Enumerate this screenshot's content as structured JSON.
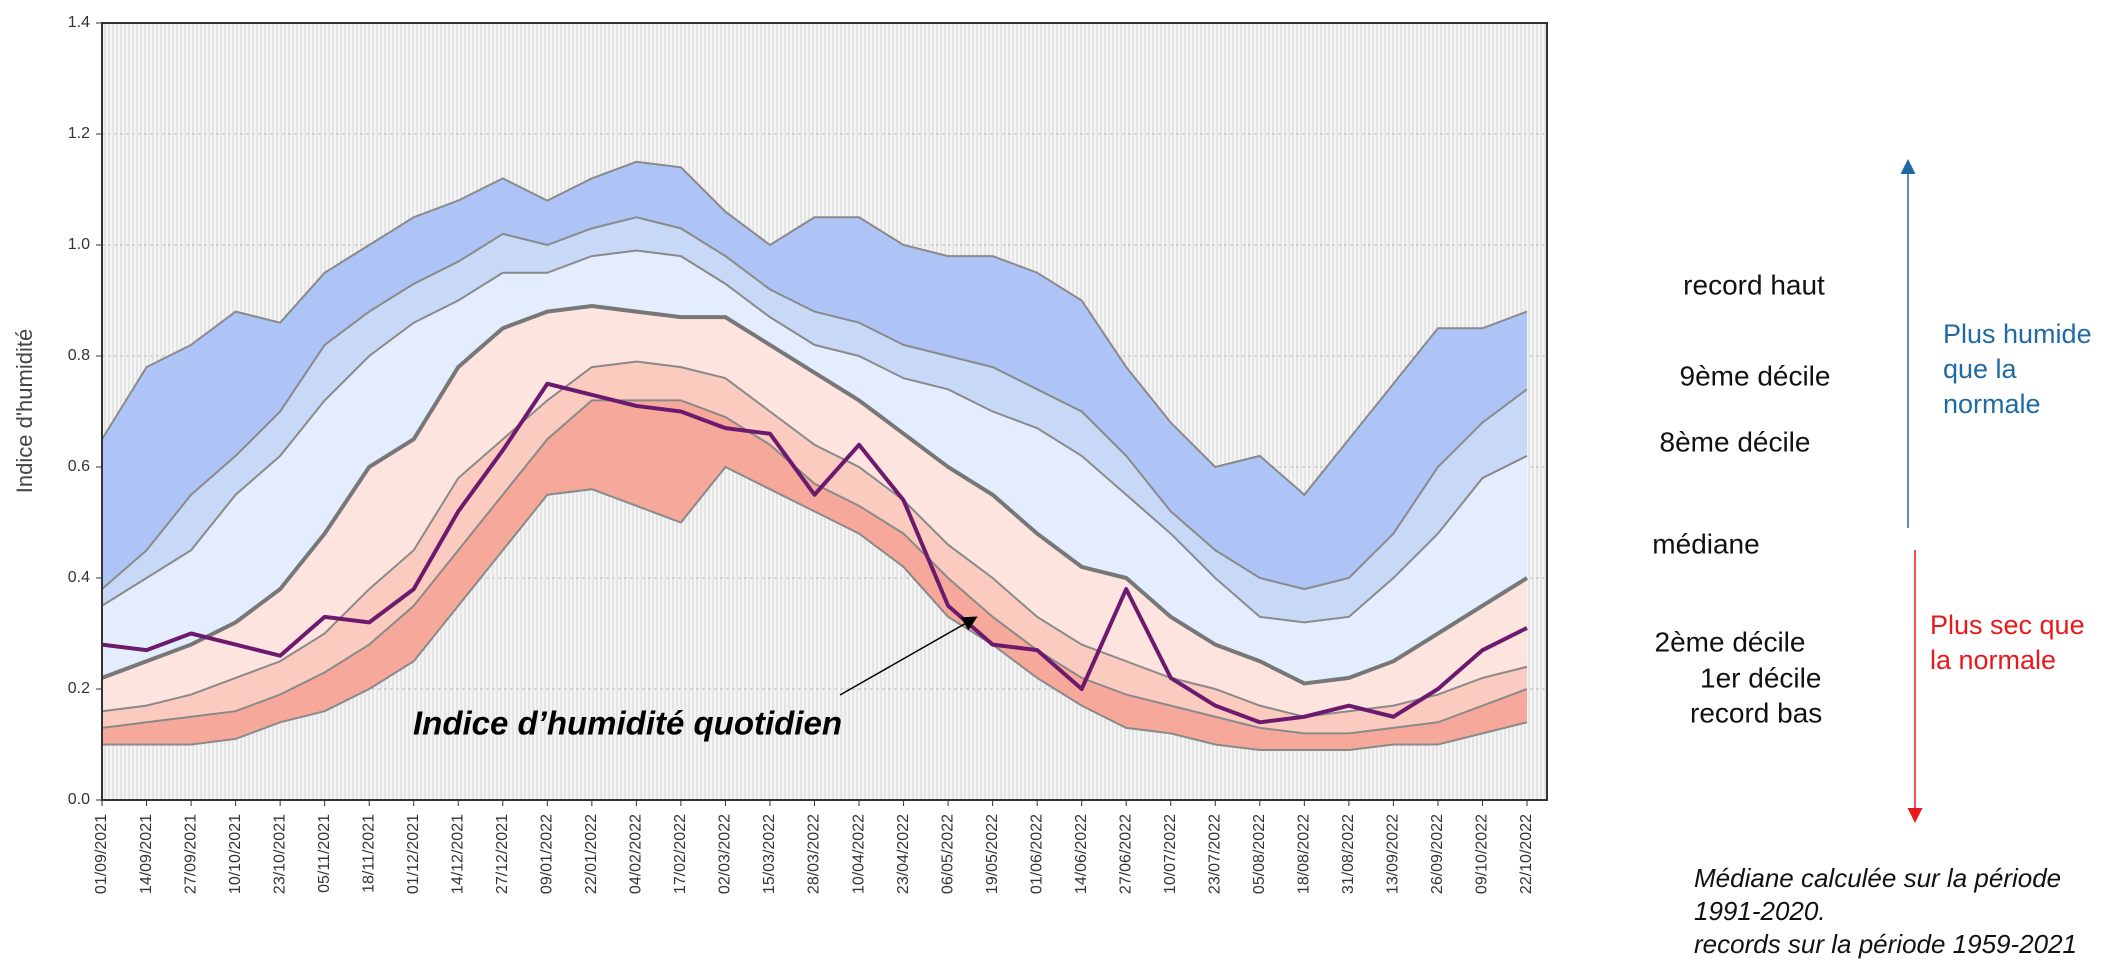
{
  "chart_data": {
    "type": "band",
    "y_label": "Indice d'humidité",
    "categories": [
      "01/09/2021",
      "14/09/2021",
      "27/09/2021",
      "10/10/2021",
      "23/10/2021",
      "05/11/2021",
      "18/11/2021",
      "01/12/2021",
      "14/12/2021",
      "27/12/2021",
      "09/01/2022",
      "22/01/2022",
      "04/02/2022",
      "17/02/2022",
      "02/03/2022",
      "15/03/2022",
      "28/03/2022",
      "10/04/2022",
      "23/04/2022",
      "06/05/2022",
      "19/05/2022",
      "01/06/2022",
      "14/06/2022",
      "27/06/2022",
      "10/07/2022",
      "23/07/2022",
      "05/08/2022",
      "18/08/2022",
      "31/08/2022",
      "13/09/2022",
      "26/09/2022",
      "09/10/2022",
      "22/10/2022"
    ],
    "ylim": [
      0,
      1.4
    ],
    "yticks": [
      {
        "value": 0,
        "label": "0.0"
      },
      {
        "value": 0.2,
        "label": "0.2"
      },
      {
        "value": 0.4,
        "label": "0.4"
      },
      {
        "value": 0.6,
        "label": "0.6"
      },
      {
        "value": 0.8,
        "label": "0.8"
      },
      {
        "value": 1,
        "label": "1.0"
      },
      {
        "value": 1.2,
        "label": "1.2"
      },
      {
        "value": 1.4,
        "label": "1.4"
      }
    ],
    "grid": true,
    "series": [
      {
        "name": "record haut",
        "color": "#aec4f6",
        "values": [
          0.65,
          0.78,
          0.82,
          0.88,
          0.86,
          0.95,
          1.0,
          1.05,
          1.08,
          1.12,
          1.08,
          1.12,
          1.15,
          1.14,
          1.06,
          1.0,
          1.05,
          1.05,
          1.0,
          0.98,
          0.98,
          0.95,
          0.9,
          0.78,
          0.68,
          0.6,
          0.62,
          0.55,
          0.65,
          0.75,
          0.85,
          0.85,
          0.88
        ]
      },
      {
        "name": "9ème décile",
        "color": "#c8d9f8",
        "values": [
          0.38,
          0.45,
          0.55,
          0.62,
          0.7,
          0.82,
          0.88,
          0.93,
          0.97,
          1.02,
          1.0,
          1.03,
          1.05,
          1.03,
          0.98,
          0.92,
          0.88,
          0.86,
          0.82,
          0.8,
          0.78,
          0.74,
          0.7,
          0.62,
          0.52,
          0.45,
          0.4,
          0.38,
          0.4,
          0.48,
          0.6,
          0.68,
          0.74
        ]
      },
      {
        "name": "8ème décile",
        "color": "#e4edfd",
        "values": [
          0.35,
          0.4,
          0.45,
          0.55,
          0.62,
          0.72,
          0.8,
          0.86,
          0.9,
          0.95,
          0.95,
          0.98,
          0.99,
          0.98,
          0.93,
          0.87,
          0.82,
          0.8,
          0.76,
          0.74,
          0.7,
          0.67,
          0.62,
          0.55,
          0.48,
          0.4,
          0.33,
          0.32,
          0.33,
          0.4,
          0.48,
          0.58,
          0.62
        ]
      },
      {
        "name": "médiane",
        "color": "#fde4de",
        "values": [
          0.22,
          0.25,
          0.28,
          0.32,
          0.38,
          0.48,
          0.6,
          0.65,
          0.78,
          0.85,
          0.88,
          0.89,
          0.88,
          0.87,
          0.87,
          0.82,
          0.77,
          0.72,
          0.66,
          0.6,
          0.55,
          0.48,
          0.42,
          0.4,
          0.33,
          0.28,
          0.25,
          0.21,
          0.22,
          0.25,
          0.3,
          0.35,
          0.4
        ]
      },
      {
        "name": "2ème décile",
        "color": "#fbcbbf",
        "values": [
          0.16,
          0.17,
          0.19,
          0.22,
          0.25,
          0.3,
          0.38,
          0.45,
          0.58,
          0.65,
          0.72,
          0.78,
          0.79,
          0.78,
          0.76,
          0.7,
          0.64,
          0.6,
          0.54,
          0.46,
          0.4,
          0.33,
          0.28,
          0.25,
          0.22,
          0.2,
          0.17,
          0.15,
          0.16,
          0.17,
          0.19,
          0.22,
          0.24
        ]
      },
      {
        "name": "1er décile",
        "color": "#f6a99b",
        "values": [
          0.13,
          0.14,
          0.15,
          0.16,
          0.19,
          0.23,
          0.28,
          0.35,
          0.45,
          0.55,
          0.65,
          0.72,
          0.72,
          0.72,
          0.69,
          0.64,
          0.57,
          0.53,
          0.48,
          0.4,
          0.33,
          0.27,
          0.22,
          0.19,
          0.17,
          0.15,
          0.13,
          0.12,
          0.12,
          0.13,
          0.14,
          0.17,
          0.2
        ]
      },
      {
        "name": "record bas",
        "color": "#f6a99b",
        "values": [
          0.1,
          0.1,
          0.1,
          0.11,
          0.14,
          0.16,
          0.2,
          0.25,
          0.35,
          0.45,
          0.55,
          0.56,
          0.53,
          0.5,
          0.6,
          0.56,
          0.52,
          0.48,
          0.42,
          0.33,
          0.28,
          0.22,
          0.17,
          0.13,
          0.12,
          0.1,
          0.09,
          0.09,
          0.09,
          0.1,
          0.1,
          0.12,
          0.14
        ]
      },
      {
        "name": "Indice d’humidité quotidien",
        "color": "#6b1a6e",
        "values": [
          0.28,
          0.27,
          0.3,
          0.28,
          0.26,
          0.33,
          0.32,
          0.38,
          0.52,
          0.63,
          0.75,
          0.73,
          0.71,
          0.7,
          0.67,
          0.66,
          0.55,
          0.64,
          0.54,
          0.35,
          0.28,
          0.27,
          0.2,
          0.38,
          0.22,
          0.17,
          0.14,
          0.15,
          0.17,
          0.15,
          0.2,
          0.27,
          0.31
        ]
      }
    ],
    "side_notes": {
      "wetter": [
        "Plus humide",
        "que la",
        "normale"
      ],
      "drier": [
        "Plus sec que",
        "la normale"
      ],
      "footnote": [
        "Médiane calculée sur la période",
        "1991-2020.",
        "records sur la période 1959-2021"
      ]
    }
  }
}
